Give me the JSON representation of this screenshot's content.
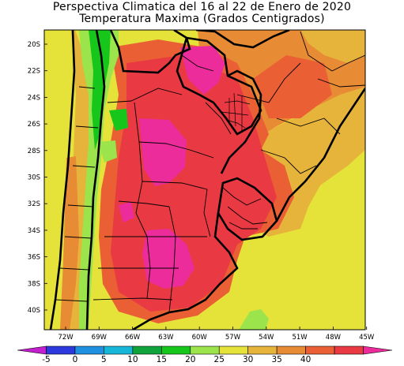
{
  "title": {
    "line1": "Perspectiva Climatica del 16 al 22 de Enero de 2020",
    "line2": "Temperatura Maxima (Grados Centigrados)"
  },
  "map": {
    "lat_labels": [
      "20S",
      "22S",
      "24S",
      "26S",
      "28S",
      "30S",
      "32S",
      "34S",
      "36S",
      "38S",
      "40S"
    ],
    "lon_labels": [
      "72W",
      "69W",
      "66W",
      "63W",
      "60W",
      "57W",
      "54W",
      "51W",
      "48W",
      "45W"
    ]
  },
  "colorbar": {
    "labels": [
      "-5",
      "0",
      "5",
      "10",
      "15",
      "20",
      "25",
      "30",
      "35",
      "40"
    ],
    "colors": [
      "#c31fcf",
      "#2b39dd",
      "#1f8fe0",
      "#16b6d8",
      "#11a33b",
      "#16c61b",
      "#9be44b",
      "#e5e23a",
      "#e6b43b",
      "#e88b35",
      "#ea5f34",
      "#e93a43",
      "#ec2c9a"
    ]
  }
}
